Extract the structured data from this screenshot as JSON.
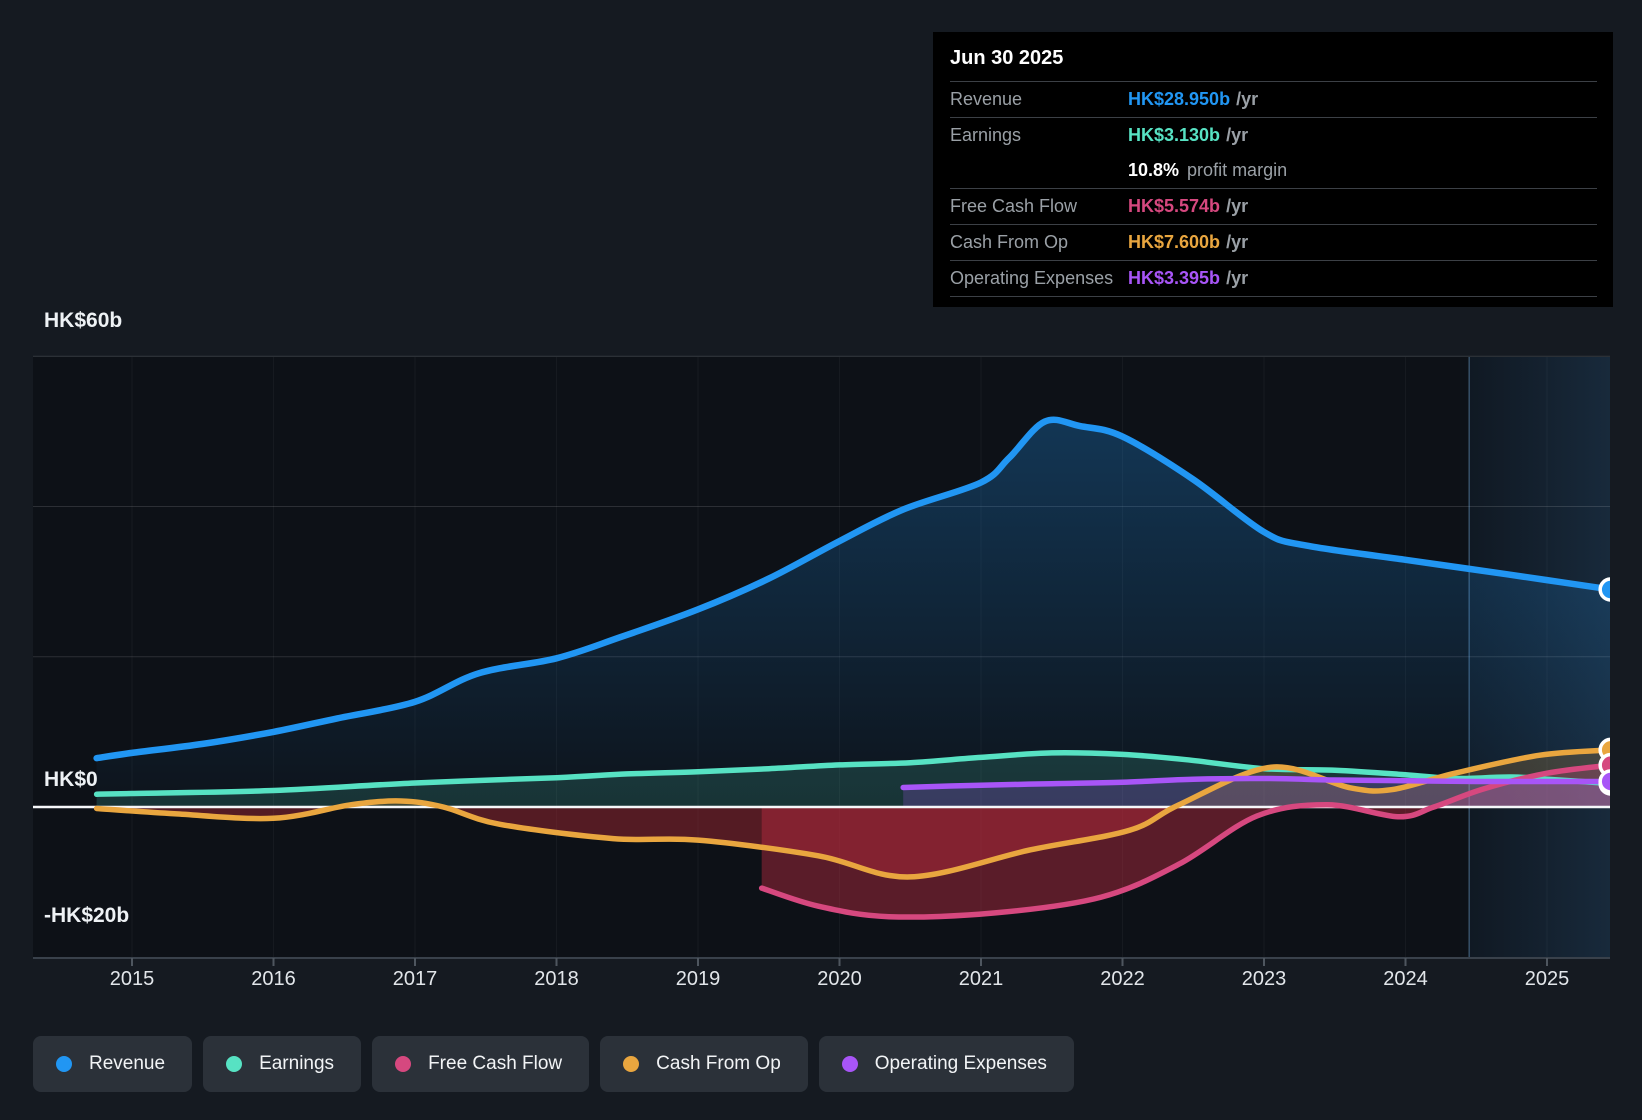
{
  "tooltip": {
    "date": "Jun 30 2025",
    "suffix": "/yr",
    "margin_value": "10.8%",
    "margin_label": "profit margin"
  },
  "axes": {
    "y_labels": [
      {
        "text": "HK$60b",
        "value": 60
      },
      {
        "text": "HK$0",
        "value": 0
      },
      {
        "text": "-HK$20b",
        "value": -20
      }
    ],
    "x_years": [
      2015,
      2016,
      2017,
      2018,
      2019,
      2020,
      2021,
      2022,
      2023,
      2024,
      2025
    ],
    "gridline_values": [
      60,
      40,
      20
    ],
    "zero_line_value": 0
  },
  "chart_data": {
    "type": "area",
    "unit": "HK$ billions per year",
    "xlim": [
      2014.6,
      2025.5
    ],
    "ylim": [
      -20,
      60
    ],
    "highlight_band": {
      "start": 2024.45,
      "end": 2025.45
    },
    "colors": {
      "page_bg": "#151a21",
      "plot_bg": "#0d1117",
      "zero_line": "#f5f7f9",
      "gridline": "rgba(255,255,255,0.13)",
      "axis_line": "#39414b",
      "negative_fill": "rgba(170,40,52,0.45)"
    },
    "series": [
      {
        "id": "revenue",
        "label": "Revenue",
        "color": "#2196f3",
        "tooltip_value": "HK$28.950b",
        "points": [
          [
            2014.75,
            6.5
          ],
          [
            2015,
            7.2
          ],
          [
            2015.5,
            8.4
          ],
          [
            2016,
            10.0
          ],
          [
            2016.45,
            11.8
          ],
          [
            2017,
            14.0
          ],
          [
            2017.45,
            17.8
          ],
          [
            2018,
            19.8
          ],
          [
            2018.45,
            22.6
          ],
          [
            2019,
            26.3
          ],
          [
            2019.5,
            30.4
          ],
          [
            2020,
            35.4
          ],
          [
            2020.45,
            39.6
          ],
          [
            2021,
            43.2
          ],
          [
            2021.2,
            46.5
          ],
          [
            2021.45,
            51.3
          ],
          [
            2021.7,
            50.7
          ],
          [
            2022,
            49.3
          ],
          [
            2022.5,
            43.6
          ],
          [
            2023,
            36.6
          ],
          [
            2023.3,
            34.8
          ],
          [
            2024,
            32.9
          ],
          [
            2024.45,
            31.7
          ],
          [
            2025,
            30.2
          ],
          [
            2025.45,
            28.95
          ]
        ]
      },
      {
        "id": "earnings",
        "label": "Earnings",
        "color": "#57e2c3",
        "tooltip_value": "HK$3.130b",
        "points": [
          [
            2014.75,
            1.7
          ],
          [
            2015,
            1.8
          ],
          [
            2016,
            2.2
          ],
          [
            2017,
            3.2
          ],
          [
            2018,
            3.9
          ],
          [
            2018.5,
            4.4
          ],
          [
            2019,
            4.7
          ],
          [
            2019.5,
            5.1
          ],
          [
            2020,
            5.6
          ],
          [
            2020.5,
            5.9
          ],
          [
            2021,
            6.6
          ],
          [
            2021.5,
            7.2
          ],
          [
            2022,
            7.0
          ],
          [
            2022.45,
            6.3
          ],
          [
            2023,
            5.1
          ],
          [
            2023.5,
            4.9
          ],
          [
            2024,
            4.3
          ],
          [
            2024.35,
            3.8
          ],
          [
            2024.75,
            4.0
          ],
          [
            2025,
            3.7
          ],
          [
            2025.45,
            3.13
          ]
        ]
      },
      {
        "id": "fcf",
        "label": "Free Cash Flow",
        "color": "#d6487f",
        "tooltip_value": "HK$5.574b",
        "points": [
          [
            2019.45,
            -10.8
          ],
          [
            2019.85,
            -13.2
          ],
          [
            2020.35,
            -14.6
          ],
          [
            2021.1,
            -14.1
          ],
          [
            2021.85,
            -12.0
          ],
          [
            2022.4,
            -7.6
          ],
          [
            2022.95,
            -1.2
          ],
          [
            2023.45,
            0.3
          ],
          [
            2023.95,
            -1.3
          ],
          [
            2024.2,
            0.0
          ],
          [
            2024.55,
            2.4
          ],
          [
            2025,
            4.5
          ],
          [
            2025.45,
            5.574
          ]
        ]
      },
      {
        "id": "cfo",
        "label": "Cash From Op",
        "color": "#e9a63f",
        "tooltip_value": "HK$7.600b",
        "points": [
          [
            2014.75,
            -0.2
          ],
          [
            2015.3,
            -0.9
          ],
          [
            2016,
            -1.5
          ],
          [
            2016.55,
            0.3
          ],
          [
            2016.9,
            0.8
          ],
          [
            2017.2,
            0.0
          ],
          [
            2017.6,
            -2.3
          ],
          [
            2018.4,
            -4.2
          ],
          [
            2019,
            -4.4
          ],
          [
            2019.85,
            -6.5
          ],
          [
            2020.5,
            -9.3
          ],
          [
            2021.35,
            -5.7
          ],
          [
            2022.05,
            -3.1
          ],
          [
            2022.4,
            0.3
          ],
          [
            2023.05,
            5.3
          ],
          [
            2023.6,
            2.6
          ],
          [
            2023.9,
            2.3
          ],
          [
            2024.35,
            4.5
          ],
          [
            2024.95,
            6.9
          ],
          [
            2025.45,
            7.6
          ]
        ]
      },
      {
        "id": "opex",
        "label": "Operating Expenses",
        "color": "#a855f7",
        "tooltip_value": "HK$3.395b",
        "points": [
          [
            2020.45,
            2.6
          ],
          [
            2021,
            2.9
          ],
          [
            2021.5,
            3.1
          ],
          [
            2022,
            3.3
          ],
          [
            2022.5,
            3.7
          ],
          [
            2023,
            3.8
          ],
          [
            2023.5,
            3.6
          ],
          [
            2024,
            3.5
          ],
          [
            2024.5,
            3.4
          ],
          [
            2025.45,
            3.395
          ]
        ]
      }
    ]
  }
}
